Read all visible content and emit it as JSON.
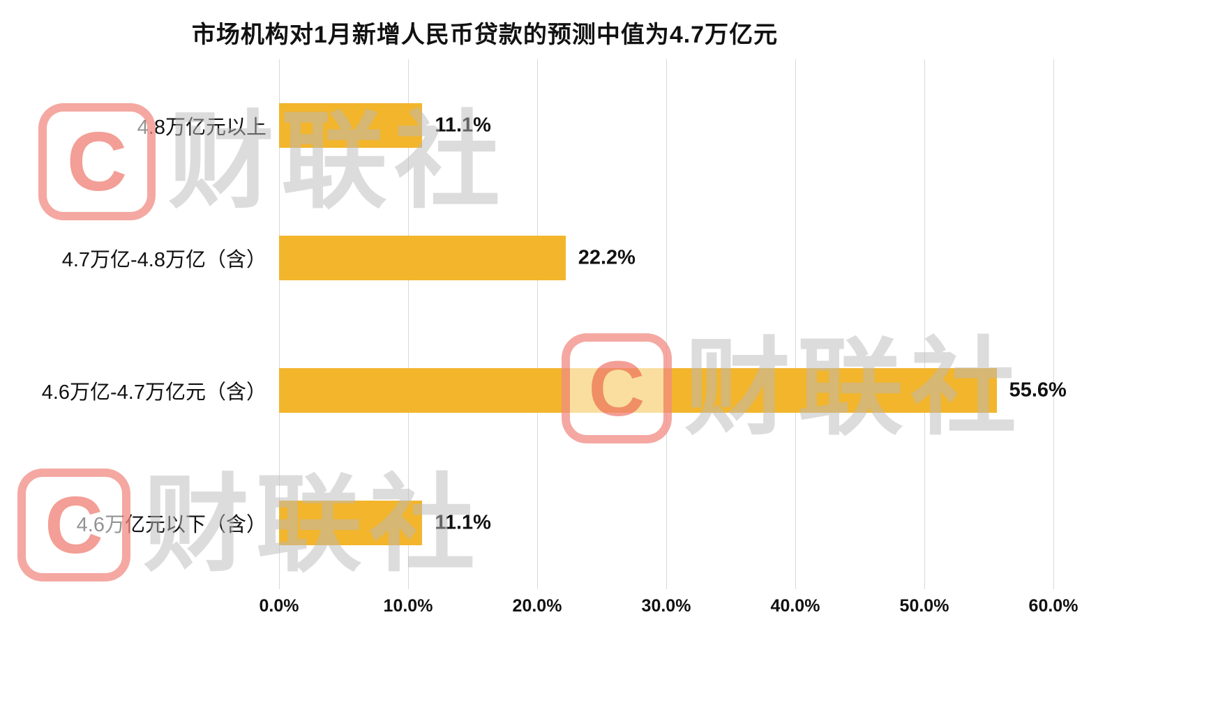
{
  "title": "市场机构对1月新增人民币贷款的预测中值为4.7万亿元",
  "watermark": {
    "letter": "C",
    "text": "财联社",
    "logo_color": "#E73E2E",
    "text_color": "#BBBBBB"
  },
  "chart_data": {
    "type": "bar",
    "orientation": "horizontal",
    "title": "市场机构对1月新增人民币贷款的预测中值为4.7万亿元",
    "categories": [
      "4.8万亿元以上",
      "4.7万亿-4.8万亿（含）",
      "4.6万亿-4.7万亿元（含）",
      "4.6万亿元以下（含）"
    ],
    "values": [
      11.1,
      22.2,
      55.6,
      11.1
    ],
    "value_labels": [
      "11.1%",
      "22.2%",
      "55.6%",
      "11.1%"
    ],
    "x_ticks": {
      "labels": [
        "0.0%",
        "10.0%",
        "20.0%",
        "30.0%",
        "40.0%",
        "50.0%",
        "60.0%"
      ],
      "values": [
        0,
        10,
        20,
        30,
        40,
        50,
        60
      ]
    },
    "xlim": [
      0,
      60
    ],
    "xlabel": "",
    "ylabel": "",
    "bar_color": "#F2B52C",
    "gridline_color": "#D9D9D9",
    "grid": true,
    "legend": false
  }
}
